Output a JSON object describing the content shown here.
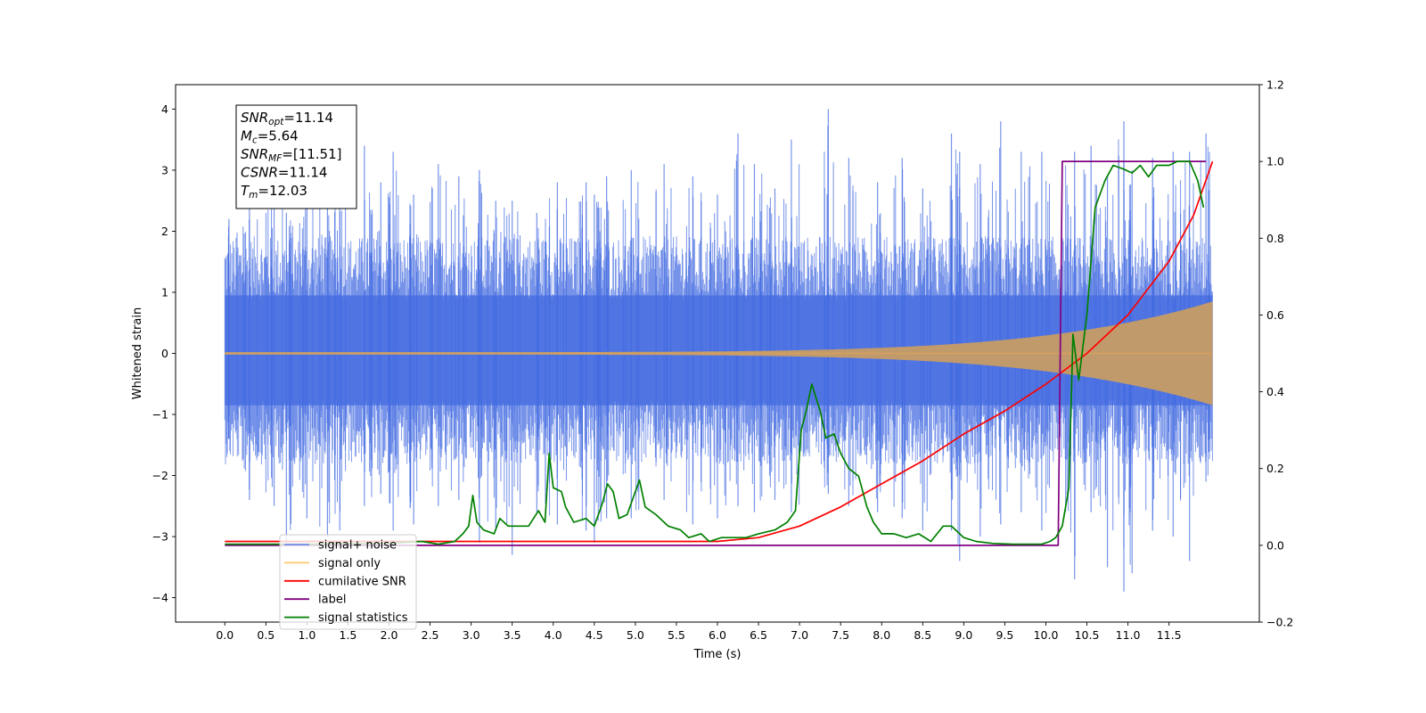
{
  "chart_data": {
    "type": "line",
    "title": "",
    "xlabel": "Time (s)",
    "ylabel": "Whitened strain",
    "y2label": "",
    "xlim": [
      -0.6,
      12.6
    ],
    "ylim": [
      -4.4,
      4.4
    ],
    "y2lim": [
      -0.2,
      1.2
    ],
    "x_ticks": [
      0.0,
      0.5,
      1.0,
      1.5,
      2.0,
      2.5,
      3.0,
      3.5,
      4.0,
      4.5,
      5.0,
      5.5,
      6.0,
      6.5,
      7.0,
      7.5,
      8.0,
      8.5,
      9.0,
      9.5,
      10.0,
      10.5,
      11.0,
      11.5
    ],
    "x_tick_labels": [
      "0.0",
      "0.5",
      "1.0",
      "1.5",
      "2.0",
      "2.5",
      "3.0",
      "3.5",
      "4.0",
      "4.5",
      "5.0",
      "5.5",
      "6.0",
      "6.5",
      "7.0",
      "7.5",
      "8.0",
      "8.5",
      "9.0",
      "9.5",
      "10.0",
      "10.5",
      "11.0",
      "11.5"
    ],
    "y_ticks": [
      -4,
      -3,
      -2,
      -1,
      0,
      1,
      2,
      3,
      4
    ],
    "y_tick_labels": [
      "−4",
      "−3",
      "−2",
      "−1",
      "0",
      "1",
      "2",
      "3",
      "4"
    ],
    "y2_ticks": [
      -0.2,
      0.0,
      0.2,
      0.4,
      0.6,
      0.8,
      1.0,
      1.2
    ],
    "y2_tick_labels": [
      "−0.2",
      "0.0",
      "0.2",
      "0.4",
      "0.6",
      "0.8",
      "1.0",
      "1.2"
    ],
    "grid": false,
    "legend_position": "lower-left",
    "annotation": {
      "lines": [
        {
          "main": "SNR",
          "sub": "opt",
          "value": "=11.14"
        },
        {
          "main": "M",
          "sub": "c",
          "value": "=5.64"
        },
        {
          "main": "SNR",
          "sub": "MF",
          "value": "=[11.51]"
        },
        {
          "main": "CSNR",
          "sub": "",
          "value": "=11.14"
        },
        {
          "main": "T",
          "sub": "m",
          "value": "=12.03"
        }
      ]
    },
    "series": [
      {
        "name": "signal+ noise",
        "axis": "left",
        "color": "#4169e1",
        "kind": "noise-band",
        "t_range": [
          0.0,
          12.03
        ],
        "envelope": {
          "upper": 1.6,
          "lower": -1.4
        },
        "peaks": [
          [
            0.05,
            2.2,
            -1.4
          ],
          [
            0.3,
            2.5,
            -2.4
          ],
          [
            0.6,
            3.0,
            -2.5
          ],
          [
            0.75,
            2.3,
            -3.1
          ],
          [
            1.0,
            3.0,
            -2.7
          ],
          [
            1.25,
            2.6,
            -3.0
          ],
          [
            1.4,
            2.9,
            -2.9
          ],
          [
            1.7,
            3.4,
            -2.5
          ],
          [
            1.9,
            2.8,
            -2.3
          ],
          [
            2.05,
            3.3,
            -2.9
          ],
          [
            2.3,
            2.6,
            -2.8
          ],
          [
            2.6,
            3.1,
            -2.5
          ],
          [
            2.85,
            2.9,
            -2.4
          ],
          [
            3.1,
            3.0,
            -3.1
          ],
          [
            3.3,
            2.5,
            -2.9
          ],
          [
            3.5,
            2.5,
            -3.3
          ],
          [
            3.8,
            2.3,
            -2.6
          ],
          [
            4.05,
            2.8,
            -2.8
          ],
          [
            4.4,
            2.8,
            -2.9
          ],
          [
            4.5,
            2.6,
            -3.1
          ],
          [
            4.65,
            2.9,
            -2.7
          ],
          [
            4.95,
            3.0,
            -2.7
          ],
          [
            5.35,
            3.1,
            -2.4
          ],
          [
            5.7,
            2.9,
            -2.8
          ],
          [
            6.0,
            2.6,
            -2.7
          ],
          [
            6.25,
            3.6,
            -2.5
          ],
          [
            6.45,
            3.1,
            -2.6
          ],
          [
            6.7,
            2.7,
            -2.4
          ],
          [
            6.9,
            3.5,
            -2.6
          ],
          [
            7.35,
            4.0,
            -2.3
          ],
          [
            7.6,
            3.2,
            -2.5
          ],
          [
            7.95,
            2.8,
            -2.6
          ],
          [
            8.25,
            3.2,
            -2.7
          ],
          [
            8.5,
            2.7,
            -2.9
          ],
          [
            8.85,
            3.6,
            -2.9
          ],
          [
            8.95,
            3.3,
            -3.4
          ],
          [
            9.2,
            3.1,
            -3.0
          ],
          [
            9.45,
            3.8,
            -2.8
          ],
          [
            9.7,
            3.3,
            -2.6
          ],
          [
            9.95,
            3.3,
            -2.9
          ],
          [
            10.35,
            3.3,
            -3.7
          ],
          [
            10.55,
            3.4,
            -2.6
          ],
          [
            10.75,
            2.9,
            -3.5
          ],
          [
            10.95,
            3.8,
            -3.9
          ],
          [
            11.05,
            3.0,
            -3.6
          ],
          [
            11.3,
            3.2,
            -2.9
          ],
          [
            11.55,
            3.3,
            -3.0
          ],
          [
            11.75,
            3.3,
            -3.4
          ],
          [
            11.95,
            3.6,
            -2.1
          ]
        ]
      },
      {
        "name": "signal only",
        "axis": "left",
        "color": "#d4a060",
        "kind": "chirp",
        "t_range": [
          0.0,
          12.03
        ],
        "amplitude_start": 0.02,
        "amplitude_end": 0.85
      },
      {
        "name": "cumilative SNR",
        "axis": "right",
        "color": "#ff0000",
        "points": [
          [
            0.0,
            0.01
          ],
          [
            6.0,
            0.01
          ],
          [
            6.5,
            0.02
          ],
          [
            7.0,
            0.05
          ],
          [
            7.5,
            0.1
          ],
          [
            8.0,
            0.16
          ],
          [
            8.5,
            0.22
          ],
          [
            9.0,
            0.29
          ],
          [
            9.5,
            0.35
          ],
          [
            10.0,
            0.42
          ],
          [
            10.5,
            0.5
          ],
          [
            11.0,
            0.6
          ],
          [
            11.5,
            0.74
          ],
          [
            11.8,
            0.86
          ],
          [
            12.03,
            1.0
          ]
        ]
      },
      {
        "name": "label",
        "axis": "right",
        "color": "#800080",
        "points": [
          [
            0.0,
            0.0
          ],
          [
            10.15,
            0.0
          ],
          [
            10.2,
            1.0
          ],
          [
            11.95,
            1.0
          ]
        ]
      },
      {
        "name": "signal statistics",
        "axis": "right",
        "color": "#008000",
        "points": [
          [
            0.0,
            0.003
          ],
          [
            0.5,
            0.003
          ],
          [
            1.0,
            0.003
          ],
          [
            1.5,
            0.004
          ],
          [
            2.0,
            0.005
          ],
          [
            2.4,
            0.01
          ],
          [
            2.6,
            0.003
          ],
          [
            2.8,
            0.01
          ],
          [
            2.9,
            0.03
          ],
          [
            2.97,
            0.05
          ],
          [
            3.02,
            0.13
          ],
          [
            3.07,
            0.06
          ],
          [
            3.15,
            0.04
          ],
          [
            3.28,
            0.03
          ],
          [
            3.35,
            0.07
          ],
          [
            3.45,
            0.05
          ],
          [
            3.6,
            0.05
          ],
          [
            3.7,
            0.05
          ],
          [
            3.82,
            0.09
          ],
          [
            3.9,
            0.06
          ],
          [
            3.95,
            0.24
          ],
          [
            4.0,
            0.15
          ],
          [
            4.1,
            0.14
          ],
          [
            4.15,
            0.1
          ],
          [
            4.25,
            0.06
          ],
          [
            4.4,
            0.07
          ],
          [
            4.5,
            0.05
          ],
          [
            4.6,
            0.11
          ],
          [
            4.66,
            0.16
          ],
          [
            4.73,
            0.14
          ],
          [
            4.8,
            0.07
          ],
          [
            4.9,
            0.08
          ],
          [
            5.05,
            0.17
          ],
          [
            5.12,
            0.1
          ],
          [
            5.25,
            0.08
          ],
          [
            5.4,
            0.05
          ],
          [
            5.55,
            0.04
          ],
          [
            5.65,
            0.02
          ],
          [
            5.8,
            0.03
          ],
          [
            5.9,
            0.01
          ],
          [
            6.05,
            0.02
          ],
          [
            6.25,
            0.02
          ],
          [
            6.35,
            0.02
          ],
          [
            6.5,
            0.03
          ],
          [
            6.7,
            0.04
          ],
          [
            6.85,
            0.06
          ],
          [
            6.95,
            0.09
          ],
          [
            7.02,
            0.3
          ],
          [
            7.08,
            0.35
          ],
          [
            7.15,
            0.42
          ],
          [
            7.25,
            0.35
          ],
          [
            7.32,
            0.28
          ],
          [
            7.42,
            0.29
          ],
          [
            7.5,
            0.24
          ],
          [
            7.6,
            0.2
          ],
          [
            7.72,
            0.18
          ],
          [
            7.82,
            0.1
          ],
          [
            7.9,
            0.06
          ],
          [
            8.0,
            0.03
          ],
          [
            8.15,
            0.03
          ],
          [
            8.3,
            0.02
          ],
          [
            8.45,
            0.03
          ],
          [
            8.6,
            0.01
          ],
          [
            8.75,
            0.05
          ],
          [
            8.85,
            0.05
          ],
          [
            9.0,
            0.02
          ],
          [
            9.15,
            0.01
          ],
          [
            9.35,
            0.005
          ],
          [
            9.6,
            0.003
          ],
          [
            9.8,
            0.003
          ],
          [
            9.95,
            0.003
          ],
          [
            10.05,
            0.01
          ],
          [
            10.12,
            0.02
          ],
          [
            10.2,
            0.05
          ],
          [
            10.28,
            0.15
          ],
          [
            10.33,
            0.55
          ],
          [
            10.4,
            0.43
          ],
          [
            10.5,
            0.6
          ],
          [
            10.6,
            0.88
          ],
          [
            10.72,
            0.95
          ],
          [
            10.82,
            0.99
          ],
          [
            10.95,
            0.98
          ],
          [
            11.05,
            0.97
          ],
          [
            11.15,
            0.99
          ],
          [
            11.25,
            0.96
          ],
          [
            11.35,
            0.99
          ],
          [
            11.5,
            0.99
          ],
          [
            11.6,
            1.0
          ],
          [
            11.75,
            1.0
          ],
          [
            11.85,
            0.95
          ],
          [
            11.92,
            0.88
          ]
        ]
      }
    ]
  }
}
